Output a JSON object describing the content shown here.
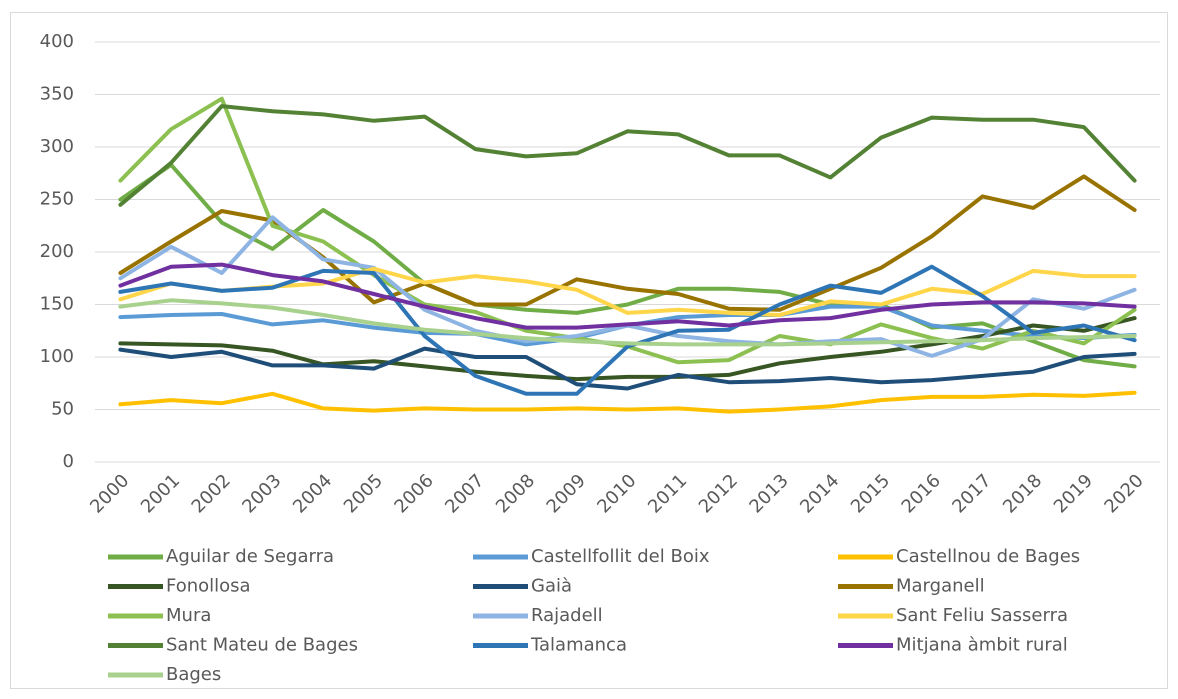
{
  "chart_data": {
    "type": "line",
    "categories": [
      "2000",
      "2001",
      "2002",
      "2003",
      "2004",
      "2005",
      "2006",
      "2007",
      "2008",
      "2009",
      "2010",
      "2011",
      "2012",
      "2013",
      "2014",
      "2015",
      "2016",
      "2017",
      "2018",
      "2019",
      "2020"
    ],
    "ylim": [
      0,
      400
    ],
    "yticks": [
      0,
      50,
      100,
      150,
      200,
      250,
      300,
      350,
      400
    ],
    "grid": true,
    "series": [
      {
        "name": "Aguilar de Segarra",
        "color": "#70ad47",
        "values": [
          250,
          283,
          228,
          203,
          240,
          210,
          170,
          150,
          145,
          142,
          150,
          165,
          165,
          162,
          150,
          150,
          128,
          132,
          115,
          97,
          91
        ]
      },
      {
        "name": "Castellfollit del Boix",
        "color": "#5b9bd5",
        "values": [
          138,
          140,
          141,
          131,
          135,
          128,
          123,
          122,
          112,
          118,
          130,
          138,
          140,
          140,
          148,
          148,
          130,
          125,
          120,
          118,
          121
        ]
      },
      {
        "name": "Castellnou de Bages",
        "color": "#ffc000",
        "values": [
          55,
          59,
          56,
          65,
          51,
          49,
          51,
          50,
          50,
          51,
          50,
          51,
          48,
          50,
          53,
          59,
          62,
          62,
          64,
          63,
          66
        ]
      },
      {
        "name": "Fonollosa",
        "color": "#375623",
        "values": [
          113,
          112,
          111,
          106,
          93,
          96,
          91,
          86,
          82,
          79,
          81,
          81,
          83,
          94,
          100,
          105,
          112,
          120,
          130,
          125,
          137
        ]
      },
      {
        "name": "Gaià",
        "color": "#1f4e79",
        "values": [
          107,
          100,
          105,
          92,
          92,
          89,
          108,
          100,
          100,
          74,
          70,
          83,
          76,
          77,
          80,
          76,
          78,
          82,
          86,
          100,
          103
        ]
      },
      {
        "name": "Marganell",
        "color": "#997300",
        "values": [
          180,
          210,
          239,
          230,
          195,
          152,
          170,
          150,
          150,
          174,
          165,
          160,
          146,
          145,
          165,
          185,
          215,
          253,
          242,
          272,
          240
        ]
      },
      {
        "name": "Mura",
        "color": "#8cc152",
        "values": [
          268,
          317,
          346,
          225,
          210,
          178,
          150,
          143,
          125,
          118,
          110,
          95,
          97,
          120,
          112,
          131,
          118,
          108,
          125,
          113,
          145
        ]
      },
      {
        "name": "Rajadell",
        "color": "#8eb4e3",
        "values": [
          175,
          205,
          180,
          233,
          193,
          185,
          145,
          125,
          115,
          120,
          130,
          120,
          115,
          112,
          115,
          117,
          101,
          117,
          155,
          146,
          164
        ]
      },
      {
        "name": "Sant Feliu Sasserra",
        "color": "#ffd54a",
        "values": [
          155,
          170,
          163,
          167,
          170,
          184,
          171,
          177,
          172,
          164,
          142,
          145,
          142,
          140,
          153,
          150,
          165,
          160,
          182,
          177,
          177
        ]
      },
      {
        "name": "Sant Mateu de Bages",
        "color": "#548235",
        "values": [
          245,
          285,
          339,
          334,
          331,
          325,
          329,
          298,
          291,
          294,
          315,
          312,
          292,
          292,
          271,
          309,
          328,
          326,
          326,
          319,
          268
        ]
      },
      {
        "name": "Talamanca",
        "color": "#2e75b6",
        "values": [
          162,
          170,
          163,
          166,
          182,
          180,
          120,
          82,
          65,
          65,
          110,
          125,
          126,
          150,
          168,
          161,
          186,
          158,
          123,
          130,
          116
        ]
      },
      {
        "name": "Mitjana àmbit rural",
        "color": "#7030a0",
        "values": [
          168,
          186,
          188,
          178,
          172,
          160,
          148,
          137,
          128,
          128,
          131,
          134,
          130,
          135,
          137,
          145,
          150,
          152,
          152,
          151,
          148
        ]
      },
      {
        "name": "Bages",
        "color": "#a9d18e",
        "values": [
          148,
          154,
          151,
          147,
          140,
          132,
          126,
          122,
          118,
          115,
          113,
          112,
          112,
          112,
          113,
          114,
          115,
          116,
          118,
          119,
          120
        ]
      }
    ]
  }
}
